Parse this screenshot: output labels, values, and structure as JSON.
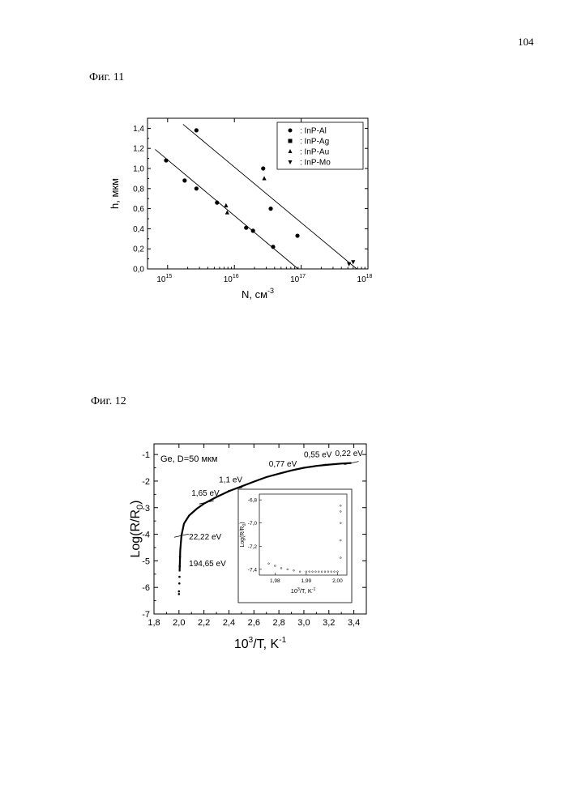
{
  "page_number": "104",
  "figures": [
    {
      "label": "Фиг. 11"
    },
    {
      "label": "Фиг. 12"
    }
  ],
  "chart_data": [
    {
      "type": "scatter",
      "xlabel_base": "N, см",
      "xlabel_sup": "-3",
      "ylabel": "h, мкм",
      "x_scale": "log",
      "xlim": [
        500000000000000.0,
        1e+18
      ],
      "ylim": [
        0,
        1.5
      ],
      "x_ticks": [
        {
          "value": 1000000000000000.0,
          "mant": "10",
          "exp": "15"
        },
        {
          "value": 1e+16,
          "mant": "10",
          "exp": "16"
        },
        {
          "value": 1e+17,
          "mant": "10",
          "exp": "17"
        },
        {
          "value": 1e+18,
          "mant": "10",
          "exp": "18"
        }
      ],
      "y_ticks": [
        {
          "value": 0.0,
          "label": "0,0"
        },
        {
          "value": 0.2,
          "label": "0,2"
        },
        {
          "value": 0.4,
          "label": "0,4"
        },
        {
          "value": 0.6,
          "label": "0,6"
        },
        {
          "value": 0.8,
          "label": "0,8"
        },
        {
          "value": 1.0,
          "label": "1,0"
        },
        {
          "value": 1.2,
          "label": "1,2"
        },
        {
          "value": 1.4,
          "label": "1,4"
        }
      ],
      "legend_position": "top-right",
      "series": [
        {
          "name": ": InP-Al",
          "marker": "circle",
          "points": [
            [
              950000000000000.0,
              1.08
            ],
            [
              1800000000000000.0,
              0.88
            ],
            [
              2700000000000000.0,
              0.8
            ],
            [
              2700000000000000.0,
              1.38
            ],
            [
              5500000000000000.0,
              0.66
            ],
            [
              1.5e+16,
              0.41
            ],
            [
              1.9e+16,
              0.38
            ],
            [
              2.7e+16,
              1.0
            ],
            [
              3.5e+16,
              0.6
            ],
            [
              3.8e+16,
              0.22
            ],
            [
              8.8e+16,
              0.33
            ]
          ]
        },
        {
          "name": ": InP-Ag",
          "marker": "square",
          "points": []
        },
        {
          "name": ": InP-Au",
          "marker": "triangle-up",
          "points": [
            [
              7500000000000000.0,
              0.63
            ],
            [
              7800000000000000.0,
              0.56
            ],
            [
              2.8e+16,
              0.9
            ]
          ]
        },
        {
          "name": ": InP-Mo",
          "marker": "triangle-down",
          "points": [
            [
              5.2e+17,
              0.05
            ],
            [
              6e+17,
              0.07
            ]
          ]
        }
      ],
      "fit_lines": [
        {
          "from": [
            650000000000000.0,
            1.19
          ],
          "to": [
            9e+16,
            0.0
          ]
        },
        {
          "from": [
            1700000000000000.0,
            1.44
          ],
          "to": [
            6.8e+17,
            0.0
          ]
        }
      ]
    },
    {
      "type": "line",
      "xlabel_base": "10",
      "xlabel_sup": "3",
      "xlabel_rest": "/T, K",
      "xlabel_sup2": "-1",
      "ylabel": "Log(R/R",
      "ylabel_sub": "0",
      "ylabel_end": ")",
      "xlim": [
        1.8,
        3.5
      ],
      "ylim": [
        -7,
        -0.6
      ],
      "x_ticks": [
        {
          "value": 1.8,
          "label": "1,8"
        },
        {
          "value": 2.0,
          "label": "2,0"
        },
        {
          "value": 2.2,
          "label": "2,2"
        },
        {
          "value": 2.4,
          "label": "2,4"
        },
        {
          "value": 2.6,
          "label": "2,6"
        },
        {
          "value": 2.8,
          "label": "2,8"
        },
        {
          "value": 3.0,
          "label": "3,0"
        },
        {
          "value": 3.2,
          "label": "3,2"
        },
        {
          "value": 3.4,
          "label": "3,4"
        }
      ],
      "y_ticks": [
        {
          "value": -1,
          "label": "-1"
        },
        {
          "value": -2,
          "label": "-2"
        },
        {
          "value": -3,
          "label": "-3"
        },
        {
          "value": -4,
          "label": "-4"
        },
        {
          "value": -5,
          "label": "-5"
        },
        {
          "value": -6,
          "label": "-6"
        },
        {
          "value": -7,
          "label": "-7"
        }
      ],
      "annotation_title": "Ge, D=50 мкм",
      "curve": [
        [
          2.005,
          -5.4
        ],
        [
          2.01,
          -4.6
        ],
        [
          2.02,
          -4.05
        ],
        [
          2.04,
          -3.6
        ],
        [
          2.08,
          -3.3
        ],
        [
          2.14,
          -3.05
        ],
        [
          2.2,
          -2.85
        ],
        [
          2.3,
          -2.6
        ],
        [
          2.4,
          -2.38
        ],
        [
          2.5,
          -2.2
        ],
        [
          2.6,
          -2.02
        ],
        [
          2.7,
          -1.85
        ],
        [
          2.8,
          -1.72
        ],
        [
          2.9,
          -1.6
        ],
        [
          3.0,
          -1.5
        ],
        [
          3.1,
          -1.43
        ],
        [
          3.2,
          -1.38
        ],
        [
          3.3,
          -1.34
        ],
        [
          3.38,
          -1.32
        ]
      ],
      "scatter_low": [
        [
          2.0,
          -6.15
        ],
        [
          2.0,
          -6.25
        ],
        [
          2.003,
          -5.85
        ],
        [
          2.004,
          -5.6
        ],
        [
          2.006,
          -5.2
        ],
        [
          2.008,
          -4.85
        ]
      ],
      "energy_labels": [
        {
          "text": "0,22 eV",
          "x": 3.25,
          "y": -1.05
        },
        {
          "text": "0,55 eV",
          "x": 3.0,
          "y": -1.1
        },
        {
          "text": "0,77 eV",
          "x": 2.72,
          "y": -1.45
        },
        {
          "text": "1,1 eV",
          "x": 2.32,
          "y": -2.05
        },
        {
          "text": "1,65 eV",
          "x": 2.1,
          "y": -2.55
        },
        {
          "text": "22,22 eV",
          "x": 2.08,
          "y": -4.2
        },
        {
          "text": "194,65 eV",
          "x": 2.08,
          "y": -5.2
        }
      ],
      "inset": {
        "type": "scatter",
        "xlabel_base": "10",
        "xlabel_sup": "3",
        "xlabel_rest": "/T, K",
        "xlabel_sup2": "-1",
        "ylabel": "Log(R/R",
        "ylabel_sub": "0",
        "ylabel_end": ")",
        "xlim": [
          1.975,
          2.003
        ],
        "ylim": [
          -7.45,
          -6.75
        ],
        "x_ticks": [
          {
            "value": 1.98,
            "label": "1,98"
          },
          {
            "value": 1.99,
            "label": "1,99"
          },
          {
            "value": 2.0,
            "label": "2,00"
          }
        ],
        "y_ticks": [
          {
            "value": -6.8,
            "label": "-6,8"
          },
          {
            "value": -7.0,
            "label": "-7,0"
          },
          {
            "value": -7.2,
            "label": "-7,2"
          },
          {
            "value": -7.4,
            "label": "-7,4"
          }
        ],
        "points": [
          [
            1.978,
            -7.35
          ],
          [
            1.98,
            -7.37
          ],
          [
            1.982,
            -7.39
          ],
          [
            1.984,
            -7.4
          ],
          [
            1.986,
            -7.41
          ],
          [
            1.988,
            -7.42
          ],
          [
            1.99,
            -7.42
          ],
          [
            1.991,
            -7.42
          ],
          [
            1.992,
            -7.42
          ],
          [
            1.993,
            -7.42
          ],
          [
            1.994,
            -7.42
          ],
          [
            1.995,
            -7.42
          ],
          [
            1.996,
            -7.42
          ],
          [
            1.997,
            -7.42
          ],
          [
            1.998,
            -7.42
          ],
          [
            1.999,
            -7.42
          ],
          [
            2.0,
            -7.42
          ],
          [
            2.001,
            -7.3
          ],
          [
            2.001,
            -7.15
          ],
          [
            2.001,
            -7.0
          ],
          [
            2.001,
            -6.9
          ],
          [
            2.001,
            -6.85
          ]
        ]
      }
    }
  ]
}
